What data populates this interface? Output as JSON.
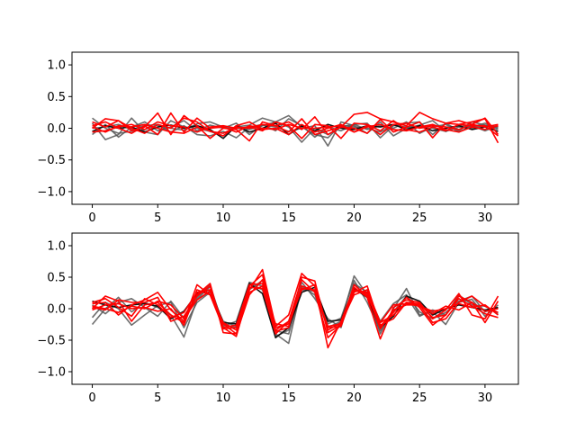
{
  "chart_data": [
    {
      "type": "line",
      "xlim": [
        -1.55,
        32.55
      ],
      "ylim": [
        -1.2,
        1.2
      ],
      "xticks": [
        0,
        5,
        10,
        15,
        20,
        25,
        30
      ],
      "yticks": [
        -1.0,
        -0.5,
        0.0,
        0.5,
        1.0
      ],
      "xtick_labels": [
        "0",
        "5",
        "10",
        "15",
        "20",
        "25",
        "30"
      ],
      "ytick_labels": [
        "−1.0",
        "−0.5",
        "0.0",
        "0.5",
        "1.0"
      ],
      "grid": false,
      "series": [
        {
          "color": "#555555",
          "values": [
            0.16,
            0.0,
            -0.08,
            -0.05,
            -0.02,
            0.05,
            0.0,
            -0.03,
            0.07,
            0.1,
            0.02,
            0.0,
            -0.02,
            0.04,
            0.1,
            0.2,
            0.02,
            -0.1,
            -0.15,
            0.05,
            0.02,
            0.0,
            -0.06,
            0.05,
            0.02,
            0.01,
            0.0,
            -0.05,
            0.02,
            0.0,
            0.05,
            0.02
          ]
        },
        {
          "color": "#555555",
          "values": [
            0.08,
            -0.18,
            -0.1,
            0.16,
            -0.06,
            -0.1,
            0.12,
            0.02,
            0.0,
            -0.05,
            -0.12,
            0.02,
            0.05,
            0.16,
            0.1,
            0.02,
            -0.22,
            0.0,
            -0.1,
            0.02,
            0.06,
            0.08,
            -0.15,
            0.04,
            0.08,
            0.1,
            -0.1,
            0.08,
            -0.04,
            0.1,
            0.05,
            -0.02
          ]
        },
        {
          "color": "#555555",
          "values": [
            -0.1,
            0.06,
            -0.14,
            0.02,
            0.1,
            -0.04,
            0.02,
            0.12,
            -0.04,
            0.05,
            0.0,
            0.08,
            -0.1,
            0.05,
            0.02,
            -0.05,
            0.0,
            0.04,
            -0.28,
            0.1,
            0.04,
            -0.08,
            0.1,
            -0.12,
            0.0,
            0.05,
            0.12,
            -0.05,
            0.06,
            0.02,
            0.08,
            0.0
          ]
        },
        {
          "color": "#555555",
          "values": [
            0.0,
            0.02,
            0.06,
            -0.02,
            0.04,
            0.06,
            -0.06,
            0.04,
            -0.1,
            -0.12,
            -0.05,
            -0.15,
            0.02,
            0.06,
            -0.04,
            0.15,
            0.04,
            -0.14,
            0.02,
            -0.04,
            0.06,
            -0.02,
            0.04,
            0.0,
            0.1,
            -0.08,
            0.02,
            0.06,
            -0.06,
            0.04,
            -0.04,
            0.04
          ]
        },
        {
          "color": "#111111",
          "values": [
            -0.05,
            0.04,
            0.0,
            0.02,
            -0.06,
            0.02,
            0.05,
            0.0,
            0.04,
            -0.02,
            -0.16,
            0.04,
            -0.06,
            0.0,
            0.08,
            -0.1,
            0.04,
            -0.04,
            0.06,
            0.0,
            -0.02,
            0.04,
            0.02,
            0.06,
            -0.02,
            0.04,
            -0.04,
            0.0,
            0.04,
            -0.02,
            0.02,
            -0.05
          ]
        },
        {
          "color": "#ff0000",
          "values": [
            0.1,
            0.02,
            0.12,
            0.0,
            -0.08,
            0.06,
            0.0,
            0.16,
            0.1,
            -0.05,
            -0.08,
            0.02,
            0.0,
            0.06,
            0.04,
            0.1,
            -0.02,
            0.18,
            -0.1,
            0.02,
            0.22,
            0.25,
            0.15,
            0.1,
            0.04,
            0.25,
            0.15,
            0.08,
            0.06,
            0.1,
            0.15,
            -0.23
          ]
        },
        {
          "color": "#ff0000",
          "values": [
            0.0,
            0.15,
            0.12,
            -0.04,
            0.02,
            0.24,
            -0.1,
            0.2,
            0.04,
            -0.16,
            0.0,
            -0.02,
            -0.2,
            0.1,
            0.04,
            -0.06,
            0.15,
            -0.1,
            -0.04,
            0.02,
            0.0,
            -0.08,
            0.14,
            -0.06,
            0.02,
            0.1,
            -0.15,
            0.08,
            0.12,
            0.06,
            0.16,
            -0.1
          ]
        },
        {
          "color": "#ff0000",
          "values": [
            -0.06,
            -0.04,
            0.02,
            0.06,
            -0.02,
            0.1,
            0.04,
            0.02,
            -0.06,
            0.02,
            0.04,
            0.0,
            0.02,
            -0.04,
            0.1,
            0.04,
            -0.16,
            0.06,
            0.04,
            -0.16,
            0.08,
            0.06,
            -0.04,
            0.12,
            -0.02,
            -0.06,
            0.02,
            -0.04,
            0.06,
            0.04,
            0.04,
            -0.12
          ]
        },
        {
          "color": "#ff0000",
          "values": [
            0.04,
            0.1,
            0.0,
            -0.08,
            0.04,
            -0.1,
            0.24,
            -0.06,
            0.16,
            0.0,
            0.02,
            -0.06,
            0.04,
            0.0,
            -0.02,
            0.06,
            0.0,
            0.0,
            0.02,
            0.04,
            -0.06,
            0.04,
            -0.1,
            0.06,
            0.08,
            0.0,
            0.04,
            0.02,
            -0.02,
            0.06,
            0.02,
            0.06
          ]
        },
        {
          "color": "#ff0000",
          "values": [
            0.02,
            -0.06,
            0.04,
            0.02,
            0.06,
            0.0,
            -0.06,
            -0.08,
            0.02,
            -0.04,
            -0.12,
            0.04,
            0.1,
            -0.02,
            0.0,
            -0.1,
            0.06,
            -0.06,
            0.0,
            0.06,
            -0.06,
            0.02,
            0.06,
            -0.02,
            -0.04,
            0.02,
            0.06,
            -0.02,
            -0.06,
            0.02,
            -0.02,
            0.04
          ]
        }
      ]
    },
    {
      "type": "line",
      "xlim": [
        -1.55,
        32.55
      ],
      "ylim": [
        -1.2,
        1.2
      ],
      "xticks": [
        0,
        5,
        10,
        15,
        20,
        25,
        30
      ],
      "yticks": [
        -1.0,
        -0.5,
        0.0,
        0.5,
        1.0
      ],
      "xtick_labels": [
        "0",
        "5",
        "10",
        "15",
        "20",
        "25",
        "30"
      ],
      "ytick_labels": [
        "−1.0",
        "−0.5",
        "0.0",
        "0.5",
        "1.0"
      ],
      "grid": false,
      "series": [
        {
          "color": "#555555",
          "values": [
            -0.25,
            0.0,
            0.18,
            -0.05,
            0.1,
            0.02,
            -0.1,
            -0.45,
            0.15,
            0.35,
            -0.25,
            -0.3,
            0.3,
            0.45,
            -0.4,
            -0.55,
            0.35,
            0.22,
            -0.3,
            -0.2,
            0.52,
            0.22,
            -0.4,
            0.0,
            0.32,
            -0.1,
            -0.05,
            -0.25,
            0.1,
            0.15,
            -0.12,
            0.06
          ]
        },
        {
          "color": "#555555",
          "values": [
            -0.14,
            0.1,
            0.0,
            -0.26,
            -0.1,
            0.05,
            0.1,
            -0.3,
            0.1,
            0.26,
            -0.2,
            -0.28,
            0.4,
            0.3,
            -0.35,
            -0.4,
            0.3,
            0.28,
            -0.24,
            -0.15,
            0.45,
            0.1,
            -0.35,
            -0.05,
            0.2,
            -0.12,
            -0.02,
            -0.1,
            0.22,
            0.06,
            0.04,
            -0.08
          ]
        },
        {
          "color": "#555555",
          "values": [
            0.06,
            -0.08,
            0.1,
            0.16,
            0.02,
            -0.12,
            0.12,
            -0.15,
            0.18,
            0.38,
            -0.28,
            -0.2,
            0.42,
            0.36,
            -0.44,
            -0.34,
            0.42,
            0.16,
            -0.16,
            -0.3,
            0.4,
            0.26,
            -0.2,
            0.08,
            0.22,
            -0.05,
            -0.16,
            -0.06,
            0.12,
            0.2,
            -0.05,
            0.02
          ]
        },
        {
          "color": "#111111",
          "values": [
            0.12,
            0.06,
            0.02,
            0.06,
            0.08,
            0.04,
            -0.16,
            -0.04,
            0.24,
            0.3,
            -0.22,
            -0.24,
            0.4,
            0.24,
            -0.46,
            -0.3,
            0.26,
            0.34,
            -0.2,
            -0.18,
            0.32,
            0.18,
            -0.3,
            -0.12,
            0.2,
            0.12,
            -0.1,
            0.0,
            0.06,
            0.02,
            -0.02,
            0.02
          ]
        },
        {
          "color": "#ff0000",
          "values": [
            0.08,
            0.1,
            -0.1,
            0.06,
            0.14,
            0.26,
            -0.02,
            -0.2,
            0.38,
            0.22,
            -0.3,
            -0.44,
            0.3,
            0.62,
            -0.28,
            -0.1,
            0.56,
            0.36,
            -0.62,
            -0.2,
            0.34,
            0.18,
            -0.48,
            0.02,
            0.14,
            0.1,
            -0.16,
            -0.02,
            0.24,
            -0.1,
            -0.16,
            0.2
          ]
        },
        {
          "color": "#ff0000",
          "values": [
            0.0,
            0.2,
            0.12,
            -0.2,
            0.06,
            0.1,
            -0.1,
            -0.22,
            0.22,
            0.4,
            -0.38,
            -0.4,
            0.36,
            0.54,
            -0.36,
            -0.3,
            0.5,
            0.44,
            -0.38,
            -0.26,
            0.26,
            0.36,
            -0.28,
            -0.06,
            0.18,
            0.02,
            -0.26,
            -0.1,
            0.2,
            0.1,
            -0.22,
            0.12
          ]
        },
        {
          "color": "#ff0000",
          "values": [
            0.1,
            0.16,
            0.02,
            -0.12,
            0.16,
            0.06,
            -0.14,
            -0.06,
            0.26,
            0.3,
            -0.24,
            -0.4,
            0.22,
            0.46,
            -0.34,
            -0.2,
            0.46,
            0.26,
            -0.46,
            -0.26,
            0.38,
            0.2,
            -0.22,
            -0.1,
            0.1,
            0.06,
            -0.22,
            -0.16,
            0.1,
            0.2,
            0.04,
            -0.06
          ]
        },
        {
          "color": "#ff0000",
          "values": [
            0.02,
            -0.02,
            0.14,
            0.1,
            0.1,
            0.18,
            -0.2,
            -0.12,
            0.2,
            0.36,
            -0.3,
            -0.26,
            0.38,
            0.4,
            -0.3,
            -0.24,
            0.32,
            0.3,
            -0.28,
            -0.24,
            0.28,
            0.26,
            -0.26,
            -0.16,
            0.1,
            0.08,
            -0.14,
            -0.1,
            0.16,
            0.04,
            -0.08,
            -0.14
          ]
        },
        {
          "color": "#ff0000",
          "values": [
            0.04,
            0.0,
            -0.06,
            0.04,
            0.0,
            0.12,
            0.06,
            -0.16,
            0.14,
            0.28,
            -0.32,
            -0.3,
            0.34,
            0.32,
            -0.4,
            -0.2,
            0.3,
            0.38,
            -0.34,
            -0.22,
            0.22,
            0.3,
            -0.22,
            0.06,
            0.08,
            0.04,
            -0.04,
            0.0,
            0.08,
            0.02,
            0.06,
            -0.1
          ]
        },
        {
          "color": "#ff0000",
          "values": [
            -0.02,
            0.06,
            0.08,
            0.0,
            0.02,
            -0.04,
            0.0,
            -0.26,
            0.3,
            0.22,
            -0.22,
            -0.34,
            0.26,
            0.36,
            -0.24,
            -0.28,
            0.36,
            0.28,
            -0.3,
            -0.28,
            0.3,
            0.24,
            -0.32,
            -0.02,
            0.06,
            0.06,
            -0.08,
            0.04,
            -0.02,
            0.1,
            -0.04,
            0.0
          ]
        }
      ]
    }
  ]
}
